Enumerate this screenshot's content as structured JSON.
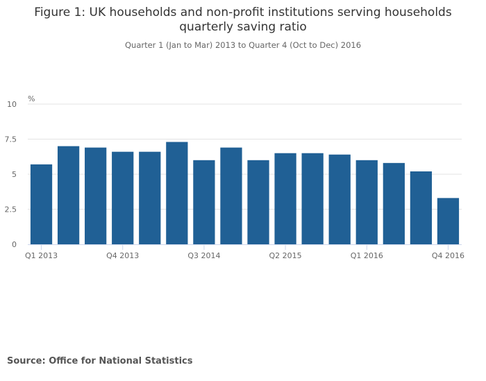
{
  "chart_data": {
    "type": "bar",
    "title": "Figure 1: UK households and non-profit institutions serving households quarterly saving ratio",
    "title_lines": [
      "Figure 1: UK households and non-profit institutions serving households",
      "quarterly saving ratio"
    ],
    "subtitle": "Quarter 1 (Jan to Mar) 2013 to Quarter 4 (Oct to Dec) 2016",
    "ylabel": "%",
    "xlabel": "",
    "ylim": [
      0,
      10
    ],
    "yticks": [
      "0",
      "2.5",
      "5",
      "7.5",
      "10"
    ],
    "grid": true,
    "categories": [
      "Q1 2013",
      "Q2 2013",
      "Q3 2013",
      "Q4 2013",
      "Q1 2014",
      "Q2 2014",
      "Q3 2014",
      "Q4 2014",
      "Q1 2015",
      "Q2 2015",
      "Q3 2015",
      "Q4 2015",
      "Q1 2016",
      "Q2 2016",
      "Q3 2016",
      "Q4 2016"
    ],
    "xtick_labels": [
      "Q1 2013",
      "Q4 2013",
      "Q3 2014",
      "Q2 2015",
      "Q1 2016",
      "Q4 2016"
    ],
    "values": [
      5.7,
      7.0,
      6.9,
      6.6,
      6.6,
      7.3,
      6.0,
      6.9,
      6.0,
      6.5,
      6.5,
      6.4,
      6.0,
      5.8,
      5.2,
      3.3
    ],
    "color": "#206095",
    "source": "Source: Office for National Statistics"
  }
}
